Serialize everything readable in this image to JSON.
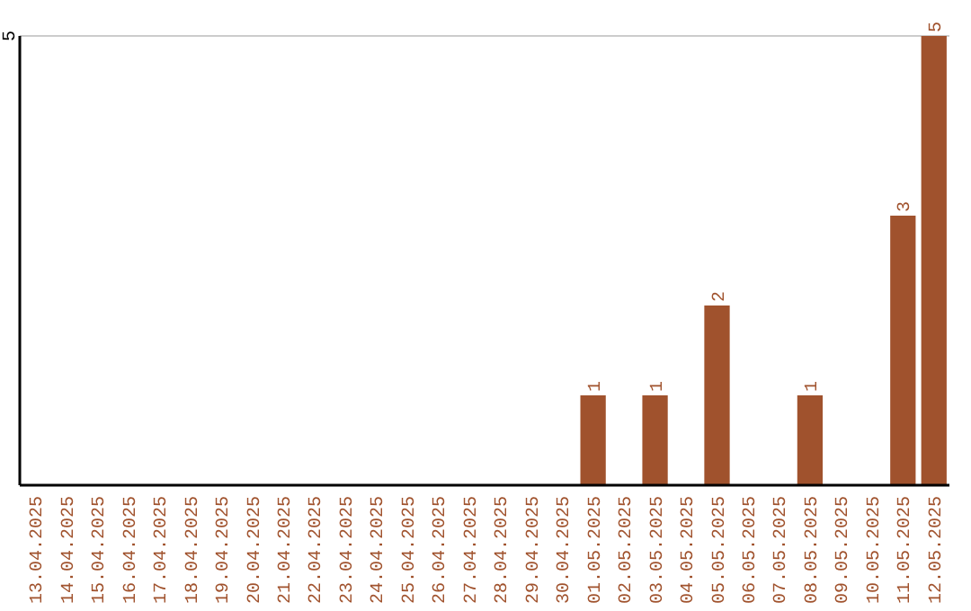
{
  "chart_data": {
    "type": "bar",
    "categories": [
      "13.04.2025",
      "14.04.2025",
      "15.04.2025",
      "16.04.2025",
      "17.04.2025",
      "18.04.2025",
      "19.04.2025",
      "20.04.2025",
      "21.04.2025",
      "22.04.2025",
      "23.04.2025",
      "24.04.2025",
      "25.04.2025",
      "26.04.2025",
      "27.04.2025",
      "28.04.2025",
      "29.04.2025",
      "30.04.2025",
      "01.05.2025",
      "02.05.2025",
      "03.05.2025",
      "04.05.2025",
      "05.05.2025",
      "06.05.2025",
      "07.05.2025",
      "08.05.2025",
      "09.05.2025",
      "10.05.2025",
      "11.05.2025",
      "12.05.2025"
    ],
    "values": [
      null,
      null,
      null,
      null,
      null,
      null,
      null,
      null,
      null,
      null,
      null,
      null,
      null,
      null,
      null,
      null,
      null,
      null,
      1,
      null,
      1,
      null,
      2,
      null,
      null,
      1,
      null,
      null,
      3,
      5
    ],
    "data_labels": true,
    "color": "#a0522d",
    "ylim": [
      0,
      5
    ],
    "yticks": [
      5
    ]
  }
}
